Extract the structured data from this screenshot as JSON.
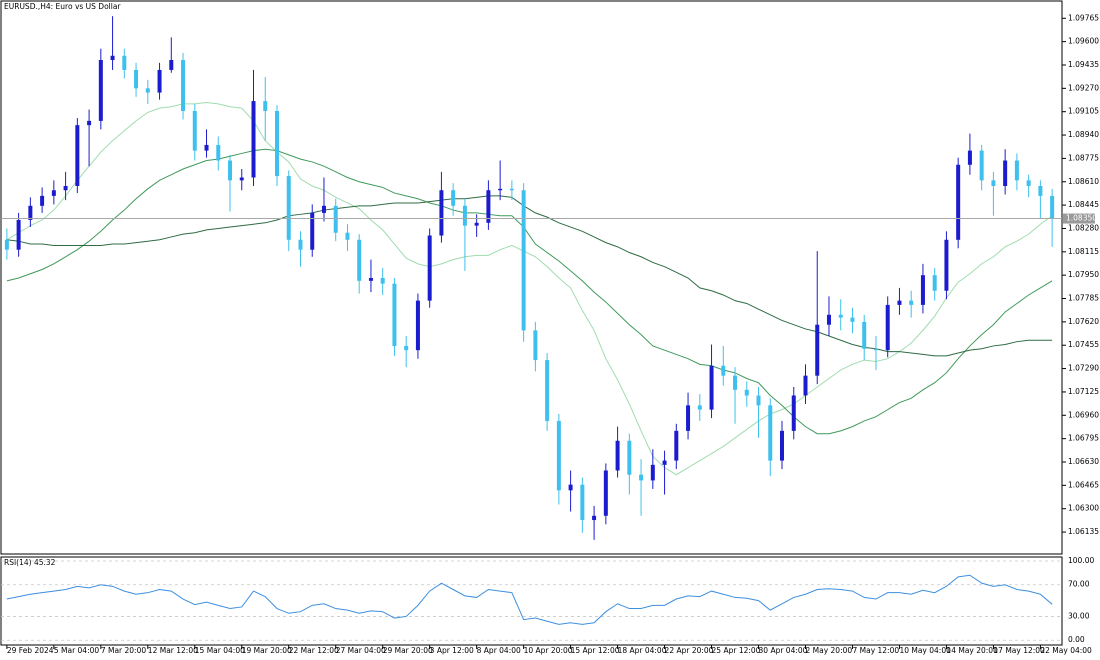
{
  "chart_data": [
    {
      "type": "candlestick",
      "title": "EURUSD.,H4:  Euro vs US Dollar",
      "categories": [
        "29 Feb 2024",
        null,
        null,
        null,
        "5 Mar 04:00",
        null,
        null,
        null,
        "7 Mar 20:00",
        null,
        null,
        null,
        "12 Mar 12:00",
        null,
        null,
        null,
        "15 Mar 04:00",
        null,
        null,
        null,
        "19 Mar 20:00",
        null,
        null,
        null,
        "22 Mar 12:00",
        null,
        null,
        null,
        "27 Mar 04:00",
        null,
        null,
        null,
        "29 Mar 20:00",
        null,
        null,
        null,
        "3 Apr 12:00",
        null,
        null,
        null,
        "8 Apr 04:00",
        null,
        null,
        null,
        "10 Apr 20:00",
        null,
        null,
        null,
        "15 Apr 12:00",
        null,
        null,
        null,
        "18 Apr 04:00",
        null,
        null,
        null,
        "22 Apr 20:00",
        null,
        null,
        null,
        "25 Apr 12:00",
        null,
        null,
        null,
        "30 Apr 04:00",
        null,
        null,
        null,
        "2 May 20:00",
        null,
        null,
        null,
        "7 May 12:00",
        null,
        null,
        null,
        "10 May 04:00",
        null,
        null,
        null,
        "14 May 20:00",
        null,
        null,
        null,
        "17 May 12:00",
        null,
        null,
        null,
        "22 May 04:00",
        null
      ],
      "open": [
        1.082,
        1.0813,
        1.0834,
        1.0844,
        1.0851,
        1.0855,
        1.0858,
        1.0901,
        1.0904,
        1.0947,
        1.095,
        1.094,
        1.0927,
        1.0924,
        1.094,
        1.0947,
        1.0911,
        1.0883,
        1.0887,
        1.0876,
        1.0862,
        1.0864,
        1.0918,
        1.0911,
        1.0865,
        1.082,
        1.0813,
        1.0839,
        1.0844,
        1.0825,
        1.082,
        1.0791,
        1.0793,
        1.0789,
        1.0745,
        1.0742,
        1.0777,
        1.0823,
        1.0855,
        1.0844,
        1.083,
        1.0832,
        1.0855,
        1.0856,
        1.0855,
        1.0756,
        1.0735,
        1.0692,
        1.0643,
        1.0647,
        1.0622,
        1.0625,
        1.0657,
        1.0678,
        1.0654,
        1.065,
        1.0661,
        1.0664,
        1.0685,
        1.0703,
        1.07,
        1.0731,
        1.0724,
        1.0714,
        1.071,
        1.0703,
        1.0664,
        1.0685,
        1.071,
        1.0724,
        1.076,
        1.0767,
        1.0765,
        1.0762,
        1.0743,
        1.0742,
        1.0774,
        1.0777,
        1.0774,
        1.0795,
        1.0784,
        1.082,
        1.0873,
        1.0883,
        1.0862,
        1.0858,
        1.0876,
        1.0862,
        1.0858,
        1.0851
      ],
      "high": [
        1.0828,
        1.0839,
        1.085,
        1.0857,
        1.0862,
        1.0868,
        1.0906,
        1.0912,
        1.0955,
        1.0978,
        1.0955,
        1.0945,
        1.0933,
        1.0945,
        1.0963,
        1.0952,
        1.0916,
        1.0898,
        1.0893,
        1.088,
        1.087,
        1.094,
        1.0935,
        1.0915,
        1.0869,
        1.0826,
        1.0845,
        1.0864,
        1.0849,
        1.0831,
        1.0824,
        1.0806,
        1.08,
        1.0793,
        1.0752,
        1.0782,
        1.0828,
        1.0868,
        1.086,
        1.0849,
        1.0838,
        1.0862,
        1.0876,
        1.0862,
        1.086,
        1.0762,
        1.074,
        1.0697,
        1.0657,
        1.0652,
        1.0632,
        1.0662,
        1.0688,
        1.0683,
        1.0665,
        1.0672,
        1.0671,
        1.069,
        1.0712,
        1.0711,
        1.0746,
        1.0745,
        1.073,
        1.072,
        1.0716,
        1.0708,
        1.0692,
        1.0716,
        1.0732,
        1.0812,
        1.078,
        1.0778,
        1.0772,
        1.0767,
        1.0752,
        1.078,
        1.0786,
        1.0784,
        1.0803,
        1.08,
        1.0826,
        1.0878,
        1.0895,
        1.0887,
        1.0868,
        1.0884,
        1.0881,
        1.0866,
        1.0862,
        1.0856
      ],
      "low": [
        1.0806,
        1.0808,
        1.0829,
        1.0839,
        1.0845,
        1.0848,
        1.0853,
        1.0872,
        1.0898,
        1.094,
        1.0934,
        1.0921,
        1.0916,
        1.0919,
        1.0938,
        1.0905,
        1.0876,
        1.0878,
        1.0869,
        1.084,
        1.0855,
        1.0858,
        1.089,
        1.0858,
        1.0812,
        1.0801,
        1.0808,
        1.0833,
        1.0819,
        1.0812,
        1.0782,
        1.0783,
        1.0781,
        1.0738,
        1.073,
        1.0736,
        1.0772,
        1.0818,
        1.0837,
        1.0798,
        1.0822,
        1.0827,
        1.0848,
        1.0848,
        1.0748,
        1.0727,
        1.0685,
        1.0633,
        1.0628,
        1.0613,
        1.0608,
        1.0619,
        1.0652,
        1.064,
        1.0625,
        1.0644,
        1.064,
        1.0658,
        1.0679,
        1.0692,
        1.0694,
        1.0717,
        1.069,
        1.0702,
        1.068,
        1.0653,
        1.0658,
        1.0679,
        1.0704,
        1.0718,
        1.0752,
        1.0756,
        1.0754,
        1.0735,
        1.0728,
        1.0737,
        1.0767,
        1.0765,
        1.0768,
        1.0777,
        1.0778,
        1.0814,
        1.0866,
        1.0855,
        1.0837,
        1.0852,
        1.0855,
        1.085,
        1.0835,
        1.0815
      ],
      "close": [
        1.0813,
        1.0834,
        1.0844,
        1.0851,
        1.0855,
        1.0858,
        1.0901,
        1.0904,
        1.0947,
        1.095,
        1.094,
        1.0927,
        1.0924,
        1.094,
        1.0947,
        1.0911,
        1.0883,
        1.0887,
        1.0876,
        1.0862,
        1.0864,
        1.0918,
        1.0911,
        1.0865,
        1.082,
        1.0813,
        1.0839,
        1.0844,
        1.0825,
        1.082,
        1.0791,
        1.0793,
        1.0789,
        1.0745,
        1.0742,
        1.0777,
        1.0823,
        1.0855,
        1.0844,
        1.083,
        1.0832,
        1.0855,
        1.0856,
        1.0855,
        1.0756,
        1.0735,
        1.0692,
        1.0643,
        1.0647,
        1.0622,
        1.0625,
        1.0657,
        1.0678,
        1.0654,
        1.065,
        1.0661,
        1.0664,
        1.0685,
        1.0703,
        1.07,
        1.0731,
        1.0724,
        1.0714,
        1.071,
        1.0703,
        1.0664,
        1.0685,
        1.071,
        1.0724,
        1.076,
        1.0767,
        1.0765,
        1.0762,
        1.0743,
        1.0742,
        1.0774,
        1.0777,
        1.0774,
        1.0795,
        1.0784,
        1.082,
        1.0873,
        1.0883,
        1.0862,
        1.0858,
        1.0876,
        1.0862,
        1.0858,
        1.0851,
        1.0835
      ],
      "up_color": "#1c1ccf",
      "down_color": "#3ec0ee",
      "series": [
        {
          "color": "#9fdcaf",
          "values": [
            1.082,
            1.0825,
            1.083,
            1.0834,
            1.0841,
            1.0851,
            1.0862,
            1.0872,
            1.0882,
            1.089,
            1.0897,
            1.0904,
            1.091,
            1.0913,
            1.0914,
            1.0916,
            1.0916,
            1.0917,
            1.0916,
            1.0914,
            1.0913,
            1.0904,
            1.089,
            1.0882,
            1.0875,
            1.0863,
            1.0858,
            1.0855,
            1.085,
            1.0846,
            1.0842,
            1.0834,
            1.0827,
            1.0817,
            1.0807,
            1.0803,
            1.0801,
            1.0803,
            1.0806,
            1.0808,
            1.0809,
            1.0809,
            1.0813,
            1.0816,
            1.0812,
            1.0808,
            1.0801,
            1.0793,
            1.0786,
            1.077,
            1.0756,
            1.0736,
            1.0721,
            1.0704,
            1.0685,
            1.0667,
            1.0659,
            1.0654,
            1.0659,
            1.0664,
            1.0669,
            1.0674,
            1.068,
            1.0686,
            1.0692,
            1.0697,
            1.07,
            1.0704,
            1.071,
            1.0716,
            1.0722,
            1.0728,
            1.0732,
            1.0735,
            1.0734,
            1.0736,
            1.0741,
            1.0747,
            1.0756,
            1.0766,
            1.0779,
            1.079,
            1.0796,
            1.0803,
            1.0808,
            1.0815,
            1.0819,
            1.0824,
            1.0831,
            1.0837
          ]
        },
        {
          "color": "#3f9a5a",
          "values": [
            1.0791,
            1.0793,
            1.0796,
            1.0799,
            1.0803,
            1.0808,
            1.0813,
            1.0819,
            1.0826,
            1.0834,
            1.0841,
            1.0849,
            1.0856,
            1.0862,
            1.0866,
            1.087,
            1.0873,
            1.0876,
            1.0877,
            1.0879,
            1.0881,
            1.0883,
            1.0884,
            1.0883,
            1.088,
            1.0877,
            1.0875,
            1.0872,
            1.0868,
            1.0864,
            1.0861,
            1.0859,
            1.0857,
            1.0853,
            1.0851,
            1.0849,
            1.0846,
            1.0844,
            1.0841,
            1.0839,
            1.0839,
            1.0838,
            1.0837,
            1.0837,
            1.0829,
            1.0817,
            1.0811,
            1.0805,
            1.0798,
            1.0791,
            1.0783,
            1.0776,
            1.0768,
            1.076,
            1.0753,
            1.0745,
            1.0742,
            1.0739,
            1.0736,
            1.0732,
            1.0731,
            1.0728,
            1.0726,
            1.0722,
            1.0719,
            1.071,
            1.0703,
            1.0695,
            1.0688,
            1.0683,
            1.0683,
            1.0685,
            1.0688,
            1.0692,
            1.0695,
            1.07,
            1.0705,
            1.0708,
            1.0714,
            1.0719,
            1.0726,
            1.0736,
            1.0745,
            1.0753,
            1.076,
            1.0769,
            1.0775,
            1.0781,
            1.0786,
            1.0791
          ]
        },
        {
          "color": "#2f6b43",
          "values": [
            1.082,
            1.0819,
            1.0817,
            1.0817,
            1.0816,
            1.0816,
            1.0816,
            1.0816,
            1.0816,
            1.0817,
            1.0817,
            1.0818,
            1.0819,
            1.082,
            1.0822,
            1.0824,
            1.0825,
            1.0827,
            1.0828,
            1.0829,
            1.083,
            1.0831,
            1.0832,
            1.0834,
            1.0837,
            1.0838,
            1.0839,
            1.0841,
            1.0842,
            1.0843,
            1.0844,
            1.0844,
            1.0845,
            1.0846,
            1.0846,
            1.0846,
            1.0847,
            1.0848,
            1.0849,
            1.0849,
            1.085,
            1.0851,
            1.0851,
            1.085,
            1.0844,
            1.0839,
            1.0836,
            1.0832,
            1.0829,
            1.0826,
            1.0822,
            1.0818,
            1.0815,
            1.0811,
            1.0808,
            1.0804,
            1.0801,
            1.0797,
            1.0793,
            1.0786,
            1.0784,
            1.0781,
            1.0777,
            1.0775,
            1.0771,
            1.0767,
            1.0763,
            1.076,
            1.0757,
            1.0755,
            1.0752,
            1.0749,
            1.0746,
            1.0744,
            1.0743,
            1.0741,
            1.0741,
            1.074,
            1.0739,
            1.0738,
            1.0738,
            1.074,
            1.0742,
            1.0743,
            1.0745,
            1.0746,
            1.0748,
            1.0749,
            1.0749,
            1.0749
          ]
        }
      ],
      "last_price": {
        "value": 1.0835,
        "label": "1.08350"
      },
      "ylim": [
        1.0598,
        1.0988
      ],
      "yticks": [
        1.09765,
        {
          "value": 1.096,
          "label": "1.09600"
        },
        1.09435,
        {
          "value": 1.0927,
          "label": "1.09270"
        },
        1.09105,
        {
          "value": 1.0894,
          "label": "1.08940"
        },
        1.08775,
        {
          "value": 1.0861,
          "label": "1.08610"
        },
        1.08445,
        {
          "value": 1.0828,
          "label": "1.08280"
        },
        1.08115,
        {
          "value": 1.0795,
          "label": "1.07950"
        },
        1.07785,
        {
          "value": 1.0762,
          "label": "1.07620"
        },
        1.07455,
        {
          "value": 1.0729,
          "label": "1.07290"
        },
        1.07125,
        {
          "value": 1.0696,
          "label": "1.06960"
        },
        1.06795,
        {
          "value": 1.0663,
          "label": "1.06630"
        },
        1.06465,
        {
          "value": 1.063,
          "label": "1.06300"
        },
        1.06135
      ]
    },
    {
      "type": "line",
      "title": "RSI(14) 45.32",
      "color": "#3d8fe0",
      "values": [
        52,
        55,
        58,
        60,
        62,
        64,
        68,
        66,
        70,
        68,
        62,
        58,
        60,
        64,
        62,
        52,
        45,
        48,
        44,
        40,
        42,
        62,
        55,
        40,
        34,
        36,
        44,
        46,
        40,
        38,
        34,
        37,
        36,
        28,
        30,
        44,
        62,
        72,
        64,
        56,
        54,
        64,
        62,
        60,
        26,
        28,
        24,
        20,
        22,
        20,
        22,
        36,
        46,
        40,
        40,
        44,
        44,
        52,
        56,
        55,
        62,
        58,
        54,
        53,
        50,
        38,
        46,
        54,
        58,
        64,
        65,
        64,
        62,
        54,
        52,
        60,
        60,
        58,
        63,
        60,
        68,
        80,
        82,
        72,
        68,
        70,
        64,
        62,
        58,
        45.32
      ],
      "ylim": [
        -6,
        105
      ],
      "yticks": [
        {
          "value": 100,
          "label": "100.00"
        },
        {
          "value": 70,
          "label": "70.00"
        },
        {
          "value": 30,
          "label": "30.00"
        },
        {
          "value": 0,
          "label": "0.00"
        }
      ]
    }
  ]
}
